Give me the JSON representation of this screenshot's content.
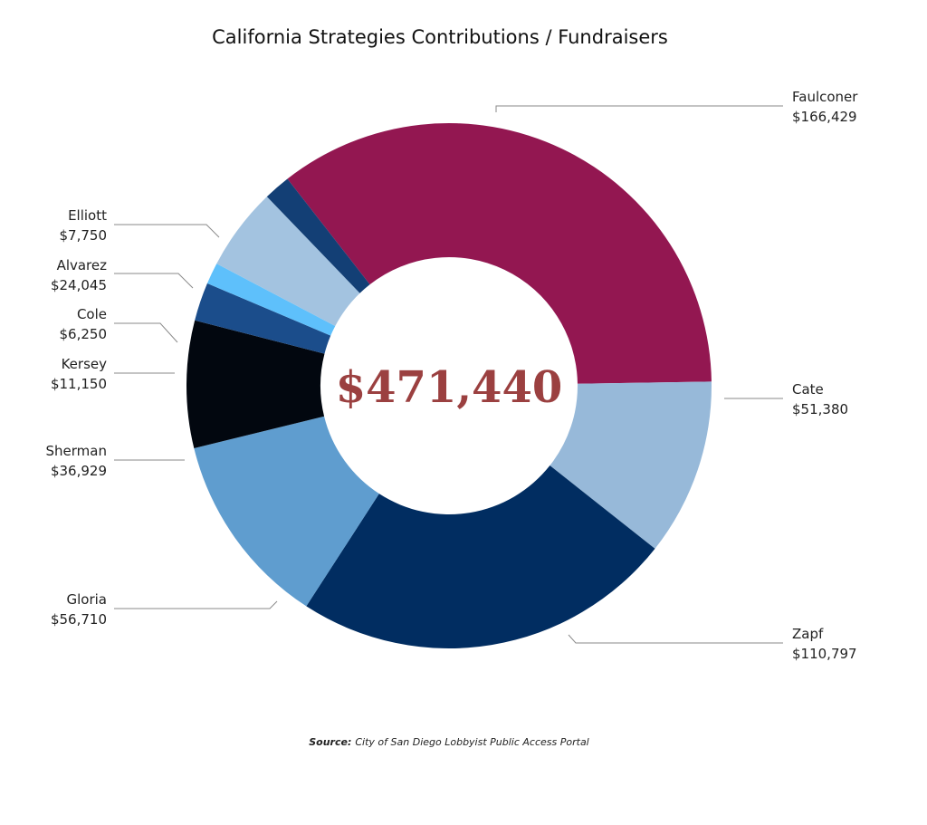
{
  "chart_data": {
    "type": "pie",
    "variant": "donut",
    "title": "California Strategies Contributions / Fundraisers",
    "center_label": "$471,440",
    "total": 471440,
    "slices": [
      {
        "name": "Faulconer",
        "value": 166429,
        "label": "$166,429",
        "color": "#931751"
      },
      {
        "name": "Cate",
        "value": 51380,
        "label": "$51,380",
        "color": "#97b9d9"
      },
      {
        "name": "Zapf",
        "value": 110797,
        "label": "$110,797",
        "color": "#012d61"
      },
      {
        "name": "Gloria",
        "value": 56710,
        "label": "$56,710",
        "color": "#5f9dcf"
      },
      {
        "name": "Sherman",
        "value": 36929,
        "label": "$36,929",
        "color": "#02070f"
      },
      {
        "name": "Kersey",
        "value": 11150,
        "label": "$11,150",
        "color": "#1b4d8b"
      },
      {
        "name": "Cole",
        "value": 6250,
        "label": "$6,250",
        "color": "#5ec0fb"
      },
      {
        "name": "Alvarez",
        "value": 24045,
        "label": "$24,045",
        "color": "#a3c3e0"
      },
      {
        "name": "Elliott",
        "value": 7750,
        "label": "$7,750",
        "color": "#133f75"
      }
    ],
    "legend": "none (callout labels)",
    "source_label": "Source:",
    "source_text": "City of San Diego Lobbyist Public Access Portal"
  }
}
